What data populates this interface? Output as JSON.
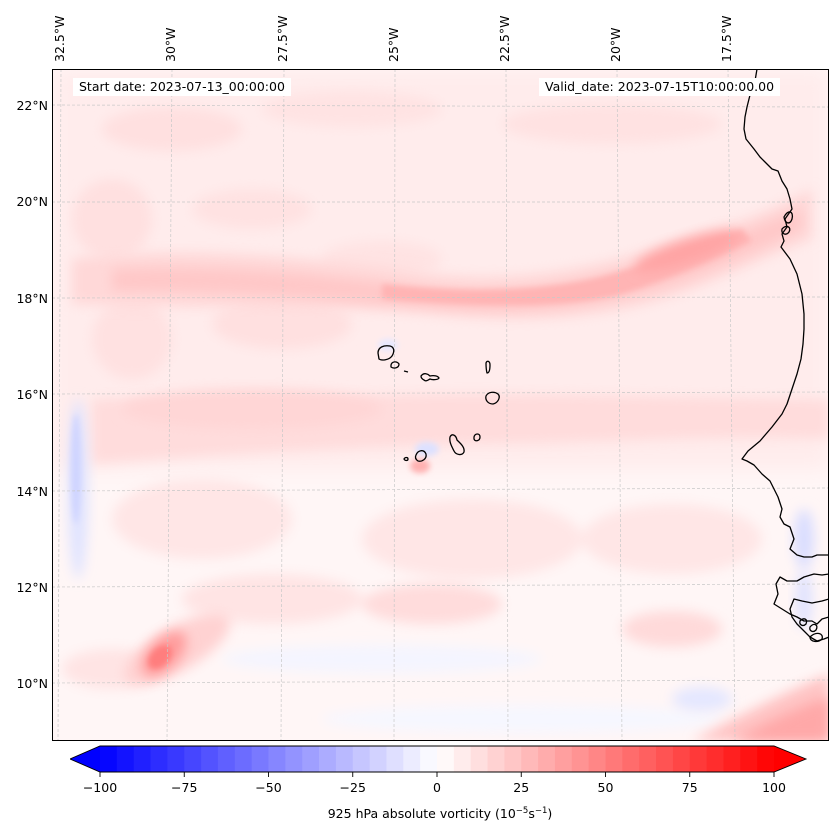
{
  "annotations": {
    "start_date": "Start date: 2023-07-13_00:00:00",
    "valid_date": "Valid_date: 2023-07-15T10:00:00.00"
  },
  "map": {
    "projection": "regional lat/lon with slight tilt",
    "extent": {
      "lon_west": -32.7,
      "lon_east": -15.3,
      "lat_south": 8.9,
      "lat_north": 22.8
    },
    "lon_gridlines": [
      "32.5°W",
      "30°W",
      "27.5°W",
      "25°W",
      "22.5°W",
      "20°W",
      "17.5°W"
    ],
    "lat_gridlines": [
      "22°N",
      "20°N",
      "18°N",
      "16°N",
      "14°N",
      "12°N",
      "10°N"
    ],
    "features": [
      {
        "name": "Cape Verde Islands",
        "type": "coastline"
      },
      {
        "name": "West African coast (Mauritania, Senegal, Gambia, Guinea-Bissau)",
        "type": "coastline"
      }
    ],
    "field_highlights": [
      {
        "description": "Elongated positive vorticity band",
        "from_lon": -32,
        "to_lon": -16.3,
        "lat_range": "18-20.5°N",
        "peak_value": 40
      },
      {
        "description": "Compact positive vorticity maximum",
        "lon": -30.5,
        "lat": 10.7,
        "peak_value": 55
      },
      {
        "description": "Weak negative strip",
        "lon": -32.3,
        "lat_range": "12-16°N",
        "min_value": -20
      },
      {
        "description": "Positive band near southern edge",
        "lon_range": "-18 to -15.3",
        "lat_range": "9-10°N",
        "peak_value": 30
      }
    ]
  },
  "colorbar": {
    "label_main": "925 hPa absolute vorticity (10",
    "label_exp1": "−5",
    "label_mid": "s",
    "label_exp2": "−1",
    "label_end": ")",
    "vmin": -100,
    "vmax": 100,
    "step": 5,
    "extend": "both",
    "colormap": "bwr",
    "ticks": [
      {
        "value": -100,
        "label": "−100"
      },
      {
        "value": -75,
        "label": "−75"
      },
      {
        "value": -50,
        "label": "−50"
      },
      {
        "value": -25,
        "label": "−25"
      },
      {
        "value": 0,
        "label": "0"
      },
      {
        "value": 25,
        "label": "25"
      },
      {
        "value": 50,
        "label": "50"
      },
      {
        "value": 75,
        "label": "75"
      },
      {
        "value": 100,
        "label": "100"
      }
    ]
  },
  "colors": {
    "low": "#0000ff",
    "mid": "#ffffff",
    "high": "#ff0000",
    "coastline": "#000000",
    "gridline": "#c8c8c8"
  }
}
